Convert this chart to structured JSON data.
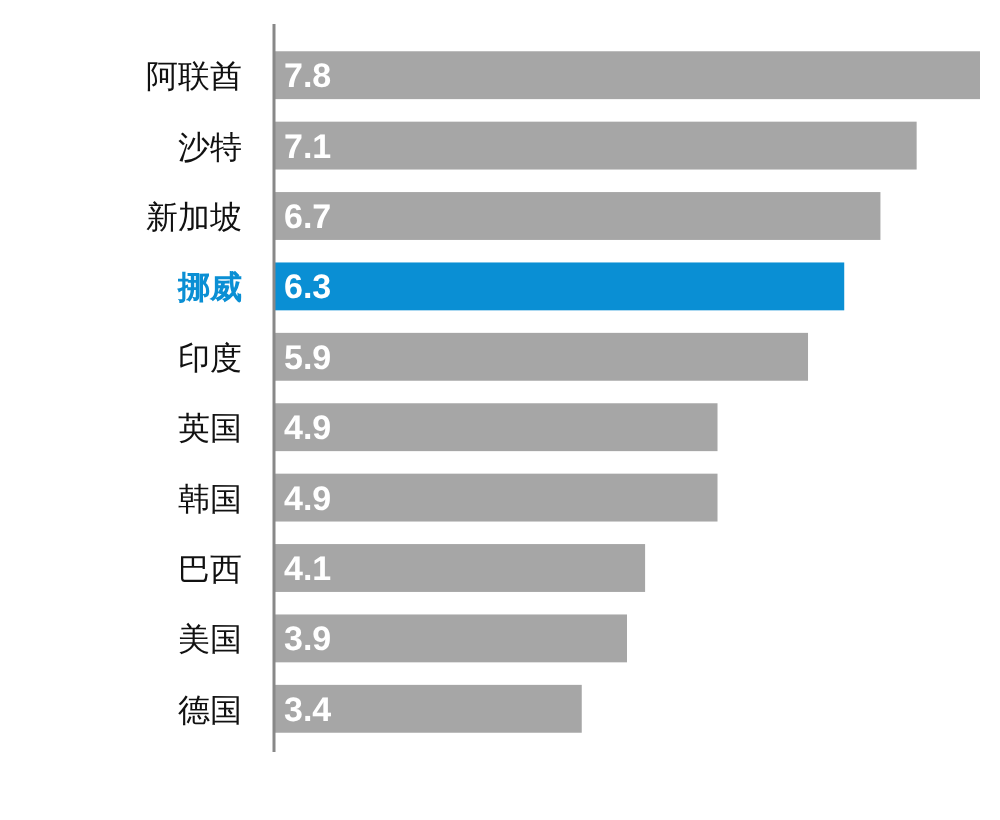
{
  "chart_data": {
    "type": "bar",
    "orientation": "horizontal",
    "categories": [
      "阿联酋",
      "沙特",
      "新加坡",
      "挪威",
      "印度",
      "英国",
      "韩国",
      "巴西",
      "美国",
      "德国"
    ],
    "values": [
      7.8,
      7.1,
      6.7,
      6.3,
      5.9,
      4.9,
      4.9,
      4.1,
      3.9,
      3.4
    ],
    "colors": [
      "#a6a6a6",
      "#a6a6a6",
      "#a6a6a6",
      "#0a8fd4",
      "#a6a6a6",
      "#a6a6a6",
      "#a6a6a6",
      "#a6a6a6",
      "#a6a6a6",
      "#a6a6a6"
    ],
    "data_labels": true
  }
}
